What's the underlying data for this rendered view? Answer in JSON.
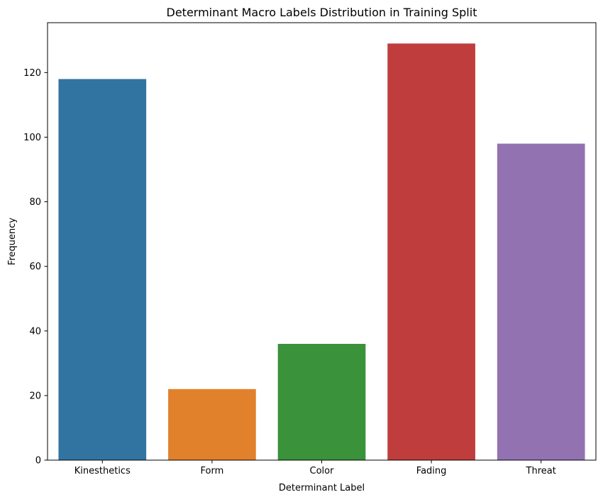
{
  "chart_data": {
    "type": "bar",
    "title": "Determinant Macro Labels Distribution in Training Split",
    "xlabel": "Determinant Label",
    "ylabel": "Frequency",
    "categories": [
      "Kinesthetics",
      "Form",
      "Color",
      "Fading",
      "Threat"
    ],
    "values": [
      118,
      22,
      36,
      129,
      98
    ],
    "colors": [
      "#3274a1",
      "#e1812c",
      "#3a923a",
      "#c03d3e",
      "#9372b2"
    ],
    "ylim": [
      0,
      135.45
    ],
    "yticks": [
      0,
      20,
      40,
      60,
      80,
      100,
      120
    ],
    "grid": false,
    "legend": "none"
  }
}
